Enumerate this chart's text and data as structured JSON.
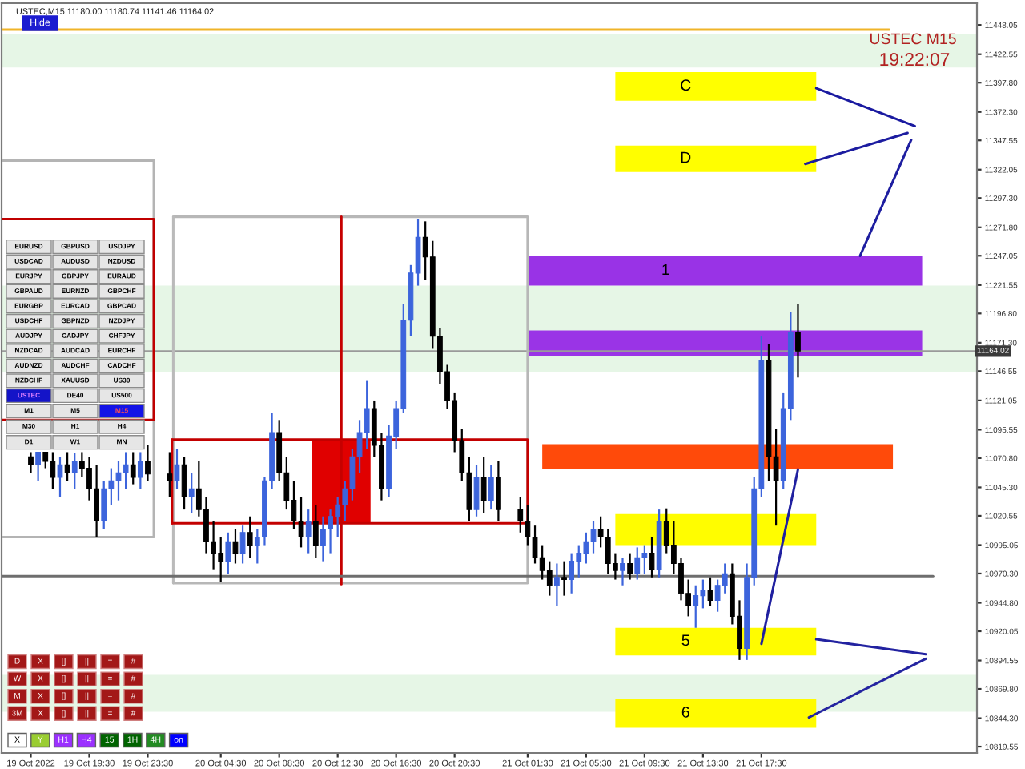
{
  "chart_data": {
    "type": "candlestick",
    "title": "USTEC,M15 11180.00 11180.74 11141.46 11164.02",
    "xlim": [
      "2022-10-19T13:30",
      "2022-10-22T08:15"
    ],
    "ylim": [
      10814,
      11467
    ],
    "xticks": [
      {
        "value": "2022-10-19T15:30",
        "label": "19 Oct 2022"
      },
      {
        "value": "2022-10-19T19:30",
        "label": "19 Oct 19:30"
      },
      {
        "value": "2022-10-19T23:30",
        "label": "19 Oct 23:30"
      },
      {
        "value": "2022-10-20T04:30",
        "label": "20 Oct 04:30"
      },
      {
        "value": "2022-10-20T08:30",
        "label": "20 Oct 08:30"
      },
      {
        "value": "2022-10-20T12:30",
        "label": "20 Oct 12:30"
      },
      {
        "value": "2022-10-20T16:30",
        "label": "20 Oct 16:30"
      },
      {
        "value": "2022-10-20T20:30",
        "label": "20 Oct 20:30"
      },
      {
        "value": "2022-10-21T01:30",
        "label": "21 Oct 01:30"
      },
      {
        "value": "2022-10-21T05:30",
        "label": "21 Oct 05:30"
      },
      {
        "value": "2022-10-21T09:30",
        "label": "21 Oct 09:30"
      },
      {
        "value": "2022-10-21T13:30",
        "label": "21 Oct 13:30"
      },
      {
        "value": "2022-10-21T17:30",
        "label": "21 Oct 17:30"
      }
    ],
    "yticks": [
      {
        "value": 11448.05,
        "label": "11448.05"
      },
      {
        "value": 11422.55,
        "label": "11422.55"
      },
      {
        "value": 11397.8,
        "label": "11397.80"
      },
      {
        "value": 11372.3,
        "label": "11372.30"
      },
      {
        "value": 11347.55,
        "label": "11347.55"
      },
      {
        "value": 11322.05,
        "label": "11322.05"
      },
      {
        "value": 11297.3,
        "label": "11297.30"
      },
      {
        "value": 11271.8,
        "label": "11271.80"
      },
      {
        "value": 11247.05,
        "label": "11247.05"
      },
      {
        "value": 11221.55,
        "label": "11221.55"
      },
      {
        "value": 11196.8,
        "label": "11196.80"
      },
      {
        "value": 11171.3,
        "label": "11171.30"
      },
      {
        "value": 11146.55,
        "label": "11146.55"
      },
      {
        "value": 11121.05,
        "label": "11121.05"
      },
      {
        "value": 11095.55,
        "label": "11095.55"
      },
      {
        "value": 11070.8,
        "label": "11070.80"
      },
      {
        "value": 11045.3,
        "label": "11045.30"
      },
      {
        "value": 11020.55,
        "label": "11020.55"
      },
      {
        "value": 10995.05,
        "label": "10995.05"
      },
      {
        "value": 10970.3,
        "label": "10970.30"
      },
      {
        "value": 10944.8,
        "label": "10944.80"
      },
      {
        "value": 10920.05,
        "label": "10920.05"
      },
      {
        "value": 10894.55,
        "label": "10894.55"
      },
      {
        "value": 10869.8,
        "label": "10869.80"
      },
      {
        "value": 10844.3,
        "label": "10844.30"
      },
      {
        "value": 10819.55,
        "label": "10819.55"
      }
    ],
    "bands": [
      {
        "axis": "y",
        "from": 11411,
        "to": 11440,
        "color": "#e6f6e6"
      },
      {
        "axis": "y",
        "from": 11146,
        "to": 11221,
        "color": "#e6f6e6"
      },
      {
        "axis": "y",
        "from": 10850,
        "to": 10882,
        "color": "#e6f6e6"
      }
    ],
    "ref_lines": [
      {
        "axis": "y",
        "value": 11164.02,
        "label": "11164.02",
        "color": "#9a9a9a"
      }
    ],
    "annotations": [
      "Hide",
      "USTEC M15",
      "19:22:07",
      "EURUSD GBPUSD USDJPY",
      "USDCAD AUDUSD NZDUSD",
      "EURJPY GBPJPY EURAUD",
      "GBPAUD EURNZD GBPCHF",
      "EURGBP EURCAD GBPCAD",
      "USDCHF GBPNZD NZDJPY",
      "AUDJPY CADJPY CHFJPY",
      "NZDCAD AUDCAD EURCHF",
      "AUDNZD AUDCHF CADCHF",
      "NZDCHF XAUUSD US30",
      "USTEC DE40 US500",
      "M1 M5 M15",
      "M30 H1 H4",
      "D1 W1 MN",
      "D X [] || = #",
      "W X [] || = #",
      "M X [] || = #",
      "3M X [] || = #",
      "X Y H1 H4 15 1H 4H on"
    ],
    "series": [
      {
        "x": [
          "2022-10-19T15:30",
          "2022-10-19T16:00",
          "2022-10-19T16:30",
          "2022-10-19T17:00",
          "2022-10-19T17:30",
          "2022-10-19T18:00",
          "2022-10-19T18:30",
          "2022-10-19T19:00",
          "2022-10-19T19:30",
          "2022-10-19T20:00",
          "2022-10-19T20:30",
          "2022-10-19T21:00",
          "2022-10-19T21:30",
          "2022-10-19T22:00",
          "2022-10-19T22:30",
          "2022-10-19T23:00",
          "2022-10-19T23:30",
          "2022-10-20T01:00",
          "2022-10-20T01:30",
          "2022-10-20T02:00",
          "2022-10-20T02:30",
          "2022-10-20T03:00",
          "2022-10-20T03:30",
          "2022-10-20T04:00",
          "2022-10-20T04:30",
          "2022-10-20T05:00",
          "2022-10-20T05:30",
          "2022-10-20T06:00",
          "2022-10-20T06:30",
          "2022-10-20T07:00",
          "2022-10-20T07:30",
          "2022-10-20T08:00",
          "2022-10-20T08:30",
          "2022-10-20T09:00",
          "2022-10-20T09:30",
          "2022-10-20T10:00",
          "2022-10-20T10:30",
          "2022-10-20T11:00",
          "2022-10-20T11:30",
          "2022-10-20T12:00",
          "2022-10-20T12:30",
          "2022-10-20T13:00",
          "2022-10-20T13:30",
          "2022-10-20T14:00",
          "2022-10-20T14:30",
          "2022-10-20T15:00",
          "2022-10-20T15:30",
          "2022-10-20T16:00",
          "2022-10-20T16:30",
          "2022-10-20T17:00",
          "2022-10-20T17:30",
          "2022-10-20T18:00",
          "2022-10-20T18:30",
          "2022-10-20T19:00",
          "2022-10-20T19:30",
          "2022-10-20T20:00",
          "2022-10-20T20:30",
          "2022-10-20T21:00",
          "2022-10-20T21:30",
          "2022-10-20T22:00",
          "2022-10-20T22:30",
          "2022-10-20T23:00",
          "2022-10-20T23:30",
          "2022-10-21T01:00",
          "2022-10-21T01:30",
          "2022-10-21T02:00",
          "2022-10-21T02:30",
          "2022-10-21T03:00",
          "2022-10-21T03:30",
          "2022-10-21T04:00",
          "2022-10-21T04:30",
          "2022-10-21T05:00",
          "2022-10-21T05:30",
          "2022-10-21T06:00",
          "2022-10-21T06:30",
          "2022-10-21T07:00",
          "2022-10-21T07:30",
          "2022-10-21T08:00",
          "2022-10-21T08:30",
          "2022-10-21T09:00",
          "2022-10-21T09:30",
          "2022-10-21T10:00",
          "2022-10-21T10:30",
          "2022-10-21T11:00",
          "2022-10-21T11:30",
          "2022-10-21T12:00",
          "2022-10-21T12:30",
          "2022-10-21T13:00",
          "2022-10-21T13:30",
          "2022-10-21T14:00",
          "2022-10-21T14:30",
          "2022-10-21T15:00",
          "2022-10-21T15:30",
          "2022-10-21T16:00",
          "2022-10-21T16:30",
          "2022-10-21T17:00",
          "2022-10-21T17:30",
          "2022-10-21T18:00",
          "2022-10-21T18:30",
          "2022-10-21T19:00",
          "2022-10-21T19:30",
          "2022-10-21T20:00"
        ],
        "ohlc": [
          [
            11072,
            11076,
            11058,
            11065
          ],
          [
            11065,
            11076,
            11051,
            11076
          ],
          [
            11076,
            11076,
            11062,
            11068
          ],
          [
            11068,
            11076,
            11044,
            11054
          ],
          [
            11054,
            11072,
            11037,
            11065
          ],
          [
            11065,
            11076,
            11051,
            11058
          ],
          [
            11058,
            11075,
            11044,
            11068
          ],
          [
            11068,
            11076,
            11054,
            11062
          ],
          [
            11062,
            11072,
            11034,
            11044
          ],
          [
            11044,
            11065,
            11002,
            11016
          ],
          [
            11016,
            11051,
            11009,
            11044
          ],
          [
            11044,
            11062,
            11030,
            11051
          ],
          [
            11051,
            11068,
            11034,
            11058
          ],
          [
            11058,
            11076,
            11044,
            11065
          ],
          [
            11065,
            11076,
            11048,
            11054
          ],
          [
            11054,
            11076,
            11044,
            11068
          ],
          [
            11068,
            11082,
            11051,
            11057
          ],
          [
            11057,
            11076,
            11037,
            11051
          ],
          [
            11051,
            11079,
            11044,
            11065
          ],
          [
            11065,
            11072,
            11026,
            11037
          ],
          [
            11037,
            11058,
            11023,
            11044
          ],
          [
            11044,
            11068,
            11020,
            11026
          ],
          [
            11026,
            11037,
            10988,
            10998
          ],
          [
            10998,
            11016,
            10974,
            10988
          ],
          [
            10988,
            11002,
            10963,
            10981
          ],
          [
            10981,
            11006,
            10970,
            10998
          ],
          [
            10998,
            11009,
            10979,
            10988
          ],
          [
            10988,
            11012,
            10979,
            11006
          ],
          [
            11006,
            11020,
            10984,
            10995
          ],
          [
            10995,
            11009,
            10979,
            11002
          ],
          [
            11002,
            11054,
            10995,
            11051
          ],
          [
            11051,
            11110,
            11044,
            11093
          ],
          [
            11093,
            11104,
            11051,
            11058
          ],
          [
            11058,
            11072,
            11026,
            11034
          ],
          [
            11034,
            11051,
            11009,
            11016
          ],
          [
            11016,
            11037,
            10993,
            11002
          ],
          [
            11002,
            11026,
            10988,
            11016
          ],
          [
            11016,
            11030,
            10984,
            10995
          ],
          [
            10995,
            11020,
            10981,
            11009
          ],
          [
            11009,
            11026,
            10988,
            11020
          ],
          [
            11020,
            11037,
            11002,
            11030
          ],
          [
            11030,
            11051,
            11016,
            11044
          ],
          [
            11044,
            11079,
            11034,
            11072
          ],
          [
            11072,
            11104,
            11058,
            11093
          ],
          [
            11093,
            11138,
            11079,
            11114
          ],
          [
            11114,
            11121,
            11072,
            11082
          ],
          [
            11082,
            11093,
            11034,
            11044
          ],
          [
            11044,
            11100,
            11037,
            11090
          ],
          [
            11090,
            11121,
            11079,
            11114
          ],
          [
            11114,
            11205,
            11110,
            11191
          ],
          [
            11191,
            11239,
            11177,
            11232
          ],
          [
            11232,
            11279,
            11221,
            11263
          ],
          [
            11263,
            11277,
            11226,
            11246
          ],
          [
            11246,
            11260,
            11166,
            11177
          ],
          [
            11177,
            11184,
            11135,
            11146
          ],
          [
            11146,
            11152,
            11114,
            11121
          ],
          [
            11121,
            11128,
            11076,
            11086
          ],
          [
            11086,
            11096,
            11051,
            11058
          ],
          [
            11058,
            11072,
            11016,
            11026
          ],
          [
            11026,
            11065,
            11020,
            11054
          ],
          [
            11054,
            11072,
            11023,
            11034
          ],
          [
            11034,
            11065,
            11026,
            11054
          ],
          [
            11054,
            11068,
            11016,
            11026
          ],
          [
            11026,
            11037,
            11006,
            11016
          ],
          [
            11016,
            11030,
            10995,
            11002
          ],
          [
            11002,
            11012,
            10979,
            10984
          ],
          [
            10984,
            10995,
            10965,
            10973
          ],
          [
            10973,
            10981,
            10951,
            10960
          ],
          [
            10960,
            10979,
            10942,
            10967
          ],
          [
            10967,
            10981,
            10951,
            10965
          ],
          [
            10965,
            10988,
            10953,
            10981
          ],
          [
            10981,
            10995,
            10967,
            10988
          ],
          [
            10988,
            11006,
            10979,
            10998
          ],
          [
            10998,
            11016,
            10988,
            11009
          ],
          [
            11009,
            11020,
            10993,
            11002
          ],
          [
            11002,
            11009,
            10970,
            10979
          ],
          [
            10979,
            10988,
            10965,
            10973
          ],
          [
            10973,
            10984,
            10960,
            10979
          ],
          [
            10979,
            10988,
            10965,
            10970
          ],
          [
            10970,
            10993,
            10965,
            10984
          ],
          [
            10984,
            10995,
            10970,
            10988
          ],
          [
            10988,
            11002,
            10967,
            10974
          ],
          [
            10974,
            11026,
            10967,
            11016
          ],
          [
            11016,
            11027,
            10988,
            10995
          ],
          [
            10995,
            11016,
            10970,
            10979
          ],
          [
            10979,
            10984,
            10947,
            10953
          ],
          [
            10953,
            10965,
            10933,
            10942
          ],
          [
            10942,
            10960,
            10923,
            10951
          ],
          [
            10951,
            10965,
            10940,
            10956
          ],
          [
            10956,
            10967,
            10942,
            10947
          ],
          [
            10947,
            10965,
            10937,
            10960
          ],
          [
            10960,
            10979,
            10953,
            10970
          ],
          [
            10970,
            10979,
            10926,
            10933
          ],
          [
            10933,
            10947,
            10895,
            10905
          ],
          [
            10905,
            10979,
            10895,
            10967
          ],
          [
            10967,
            11054,
            10960,
            11044
          ],
          [
            11044,
            11177,
            11037,
            11156
          ],
          [
            11156,
            11170,
            11051,
            11072
          ],
          [
            11072,
            11096,
            11012,
            11051
          ],
          [
            11051,
            11128,
            11044,
            11114
          ],
          [
            11114,
            11198,
            11104,
            11180
          ],
          [
            11180,
            11205,
            11141,
            11164
          ]
        ],
        "colors": [
          "#000000",
          "#3c64dc",
          "#000000",
          "#000000",
          "#3c64dc",
          "#000000",
          "#3c64dc",
          "#000000",
          "#000000",
          "#000000",
          "#3c64dc",
          "#3c64dc",
          "#3c64dc",
          "#3c64dc",
          "#000000",
          "#3c64dc",
          "#000000",
          "#000000",
          "#3c64dc",
          "#000000",
          "#3c64dc",
          "#000000",
          "#000000",
          "#000000",
          "#000000",
          "#3c64dc",
          "#000000",
          "#3c64dc",
          "#000000",
          "#3c64dc",
          "#3c64dc",
          "#3c64dc",
          "#000000",
          "#000000",
          "#000000",
          "#000000",
          "#3c64dc",
          "#000000",
          "#3c64dc",
          "#3c64dc",
          "#3c64dc",
          "#3c64dc",
          "#3c64dc",
          "#3c64dc",
          "#3c64dc",
          "#000000",
          "#000000",
          "#3c64dc",
          "#3c64dc",
          "#3c64dc",
          "#3c64dc",
          "#3c64dc",
          "#000000",
          "#000000",
          "#000000",
          "#000000",
          "#000000",
          "#000000",
          "#000000",
          "#3c64dc",
          "#000000",
          "#3c64dc",
          "#000000",
          "#000000",
          "#000000",
          "#000000",
          "#000000",
          "#000000",
          "#3c64dc",
          "#000000",
          "#3c64dc",
          "#3c64dc",
          "#3c64dc",
          "#3c64dc",
          "#000000",
          "#000000",
          "#000000",
          "#3c64dc",
          "#000000",
          "#3c64dc",
          "#3c64dc",
          "#000000",
          "#3c64dc",
          "#000000",
          "#000000",
          "#000000",
          "#000000",
          "#3c64dc",
          "#3c64dc",
          "#000000",
          "#3c64dc",
          "#3c64dc",
          "#000000",
          "#000000",
          "#3c64dc",
          "#3c64dc",
          "#3c64dc",
          "#000000",
          "#000000",
          "#3c64dc",
          "#3c64dc",
          "#000000"
        ]
      },
      {
        "type": "area",
        "name": "C",
        "color": "#ffff00",
        "x": [
          "2022-10-21T07:30",
          "2022-10-21T21:15",
          "2022-10-21T21:15",
          "2022-10-21T07:30"
        ],
        "values": [
          11407,
          11407,
          11382,
          11382
        ]
      },
      {
        "type": "area",
        "name": "D",
        "color": "#fffe00",
        "x": [
          "2022-10-21T07:30",
          "2022-10-21T21:15",
          "2022-10-21T21:15",
          "2022-10-21T07:30"
        ],
        "values": [
          11343,
          11343,
          11320,
          11320
        ]
      },
      {
        "type": "area",
        "color": "#fffd00",
        "x": [
          "2022-10-21T07:30",
          "2022-10-21T21:15",
          "2022-10-21T21:15",
          "2022-10-21T07:30"
        ],
        "values": [
          11022,
          11022,
          10995,
          10995
        ]
      },
      {
        "type": "area",
        "name": "5",
        "color": "#fffc00",
        "x": [
          "2022-10-21T07:30",
          "2022-10-21T21:15",
          "2022-10-21T21:15",
          "2022-10-21T07:30"
        ],
        "values": [
          10923,
          10923,
          10899,
          10899
        ]
      },
      {
        "type": "area",
        "name": "6",
        "color": "#fffb00",
        "x": [
          "2022-10-21T07:30",
          "2022-10-21T21:15",
          "2022-10-21T21:15",
          "2022-10-21T07:30"
        ],
        "values": [
          10861,
          10861,
          10836,
          10836
        ]
      },
      {
        "type": "area",
        "name": "1",
        "color": "#9933e6",
        "x": [
          "2022-10-21T01:30",
          "2022-10-22T04:30",
          "2022-10-22T04:30",
          "2022-10-21T01:30"
        ],
        "values": [
          11247,
          11247,
          11221,
          11221
        ]
      },
      {
        "type": "area",
        "color": "#9a34e6",
        "x": [
          "2022-10-21T01:30",
          "2022-10-22T04:30",
          "2022-10-22T04:30",
          "2022-10-21T01:30"
        ],
        "values": [
          11182,
          11182,
          11160,
          11160
        ]
      },
      {
        "type": "area",
        "color": "#ff4a0a",
        "x": [
          "2022-10-21T02:30",
          "2022-10-22T02:30",
          "2022-10-22T02:30",
          "2022-10-21T02:30"
        ],
        "values": [
          11083,
          11083,
          11061,
          11061
        ]
      },
      {
        "type": "area",
        "color": "#e00000",
        "x": [
          "2022-10-20T10:45",
          "2022-10-20T14:45",
          "2022-10-20T14:45",
          "2022-10-20T10:45"
        ],
        "values": [
          11087,
          11087,
          11014,
          11014
        ]
      },
      {
        "type": "line",
        "color": "#b4b4b4",
        "x": [
          "2022-10-19T13:30",
          "2022-10-19T23:55",
          "2022-10-19T23:55",
          "2022-10-19T13:30"
        ],
        "values": [
          11330,
          11330,
          11002,
          11002
        ]
      },
      {
        "type": "line",
        "color": "#c00000",
        "x": [
          "2022-10-19T13:30",
          "2022-10-19T23:55",
          "2022-10-19T23:55",
          "2022-10-19T13:30"
        ],
        "values": [
          11279,
          11279,
          11104,
          11104
        ]
      },
      {
        "type": "line",
        "color": "#b7b7b7",
        "x": [
          "2022-10-20T01:15",
          "2022-10-21T01:30",
          "2022-10-21T01:30",
          "2022-10-20T01:15"
        ],
        "values": [
          11281,
          11281,
          10962,
          10962
        ]
      },
      {
        "type": "line",
        "color": "#bababa",
        "x": [
          "2022-10-20T01:15",
          "2022-10-20T01:15"
        ],
        "values": [
          11281,
          10962
        ]
      },
      {
        "type": "line",
        "color": "#c30000",
        "x": [
          "2022-10-20T01:10",
          "2022-10-21T01:30",
          "2022-10-21T01:30",
          "2022-10-20T01:10"
        ],
        "values": [
          11087,
          11087,
          11014,
          11014
        ]
      },
      {
        "type": "line",
        "color": "#c90000",
        "x": [
          "2022-10-20T01:10",
          "2022-10-20T01:10"
        ],
        "values": [
          11087,
          11014
        ]
      },
      {
        "type": "line",
        "color": "#c60000",
        "x": [
          "2022-10-20T12:45",
          "2022-10-20T12:45"
        ],
        "values": [
          11281,
          10961
        ]
      },
      {
        "type": "line",
        "color": "#6e6e6e",
        "x": [
          "2022-10-19T13:30",
          "2022-10-22T05:15"
        ],
        "values": [
          10968,
          10968
        ]
      },
      {
        "type": "line",
        "color": "#f0b429",
        "x": [
          "2022-10-19T13:30",
          "2022-10-22T02:15"
        ],
        "values": [
          11444,
          11444
        ]
      },
      {
        "type": "line",
        "color": "#1a1aa0",
        "x": [
          "2022-10-21T21:15",
          "2022-10-22T04:00"
        ],
        "values": [
          11393,
          11360
        ]
      },
      {
        "type": "line",
        "color": "#1c1ca0",
        "x": [
          "2022-10-21T20:30",
          "2022-10-22T03:30"
        ],
        "values": [
          11327,
          11354
        ]
      },
      {
        "type": "line",
        "color": "#1e1ea0",
        "x": [
          "2022-10-22T03:45",
          "2022-10-22T00:15"
        ],
        "values": [
          11348,
          11247
        ]
      },
      {
        "type": "line",
        "color": "#2020a0",
        "x": [
          "2022-10-21T20:00",
          "2022-10-21T17:30"
        ],
        "values": [
          11061,
          10909
        ]
      },
      {
        "type": "line",
        "color": "#2222a0",
        "x": [
          "2022-10-21T21:15",
          "2022-10-22T04:45"
        ],
        "values": [
          10913,
          10900
        ]
      },
      {
        "type": "line",
        "color": "#2424a0",
        "x": [
          "2022-10-22T04:45",
          "2022-10-21T20:45"
        ],
        "values": [
          10896,
          10845
        ]
      }
    ]
  }
}
